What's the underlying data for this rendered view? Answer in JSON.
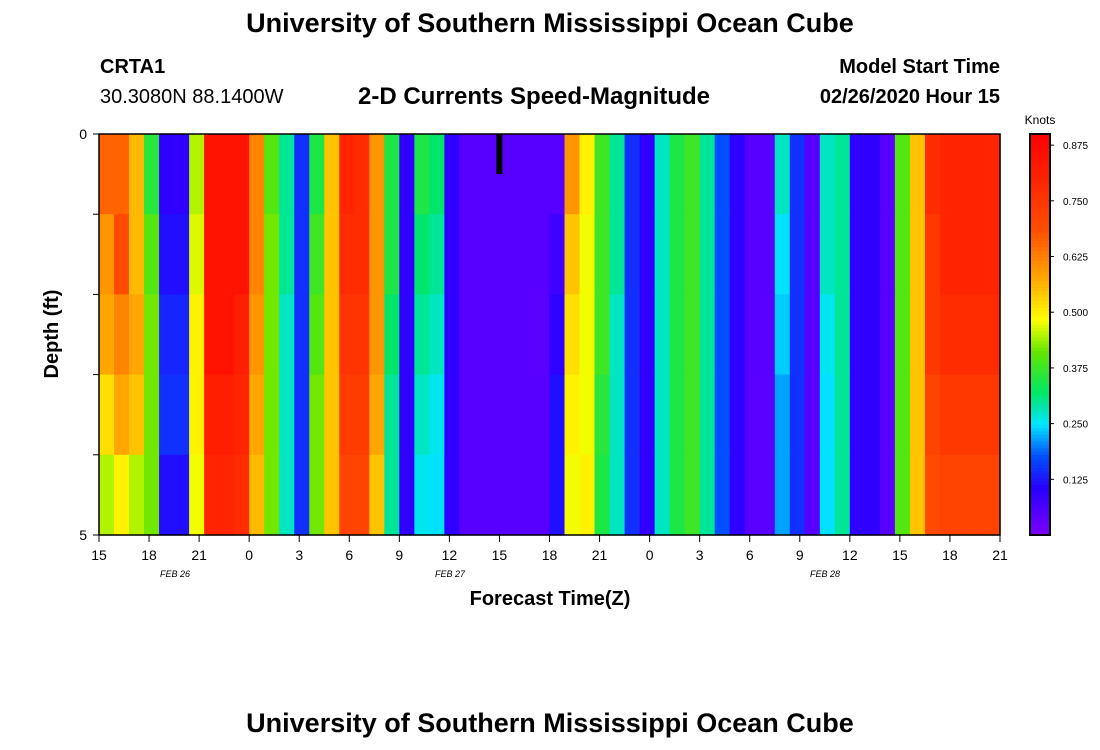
{
  "header": {
    "title": "University of Southern Mississippi Ocean Cube",
    "station_id": "CRTA1",
    "coordinates": "30.3080N 88.1400W",
    "subtitle": "2-D Currents Speed-Magnitude",
    "model_start_label": "Model Start Time",
    "model_start_value": "02/26/2020 Hour 15"
  },
  "footer": {
    "title": "University of Southern Mississippi Ocean Cube"
  },
  "chart_data": {
    "type": "heatmap",
    "xlabel": "Forecast Time(Z)",
    "ylabel": "Depth (ft)",
    "colorbar_label": "Knots",
    "x_tick_labels": [
      "15",
      "18",
      "21",
      "0",
      "3",
      "6",
      "9",
      "12",
      "15",
      "18",
      "21",
      "0",
      "3",
      "6",
      "9",
      "12",
      "15",
      "18",
      "21"
    ],
    "date_labels": [
      "FEB 26",
      "FEB 27",
      "FEB 28"
    ],
    "y_tick_labels": [
      "0",
      "5"
    ],
    "ylim": [
      0,
      5
    ],
    "colorbar_ticks": [
      "0.875",
      "0.750",
      "0.625",
      "0.500",
      "0.375",
      "0.250",
      "0.125"
    ],
    "colorbar_range": [
      0,
      0.9
    ],
    "time_hours": 54,
    "depth_levels": 5,
    "speed_knots": [
      [
        0.66,
        0.66,
        0.56,
        0.36,
        0.1,
        0.1,
        0.45,
        0.85,
        0.85,
        0.85,
        0.62,
        0.4,
        0.3,
        0.15,
        0.35,
        0.55,
        0.8,
        0.78,
        0.6,
        0.35,
        0.1,
        0.35,
        0.32,
        0.1,
        0.05,
        0.05,
        0.05,
        0.05,
        0.05,
        0.05,
        0.05,
        0.6,
        0.5,
        0.38,
        0.3,
        0.15,
        0.1,
        0.28,
        0.35,
        0.38,
        0.3,
        0.18,
        0.1,
        0.05,
        0.05,
        0.28,
        0.15,
        0.05,
        0.28,
        0.3,
        0.1,
        0.1,
        0.05,
        0.4,
        0.55,
        0.78,
        0.8,
        0.8,
        0.8,
        0.8
      ],
      [
        0.6,
        0.7,
        0.56,
        0.4,
        0.12,
        0.12,
        0.47,
        0.85,
        0.85,
        0.85,
        0.62,
        0.42,
        0.3,
        0.15,
        0.38,
        0.55,
        0.78,
        0.78,
        0.6,
        0.35,
        0.1,
        0.32,
        0.3,
        0.1,
        0.05,
        0.05,
        0.05,
        0.05,
        0.05,
        0.05,
        0.08,
        0.55,
        0.48,
        0.38,
        0.3,
        0.15,
        0.1,
        0.28,
        0.35,
        0.38,
        0.3,
        0.18,
        0.1,
        0.05,
        0.05,
        0.25,
        0.15,
        0.05,
        0.28,
        0.3,
        0.1,
        0.1,
        0.05,
        0.4,
        0.55,
        0.75,
        0.8,
        0.8,
        0.8,
        0.8
      ],
      [
        0.58,
        0.62,
        0.58,
        0.42,
        0.14,
        0.14,
        0.5,
        0.85,
        0.85,
        0.82,
        0.6,
        0.42,
        0.28,
        0.15,
        0.4,
        0.55,
        0.76,
        0.76,
        0.6,
        0.32,
        0.1,
        0.3,
        0.28,
        0.1,
        0.05,
        0.05,
        0.05,
        0.05,
        0.05,
        0.05,
        0.1,
        0.52,
        0.48,
        0.38,
        0.28,
        0.15,
        0.1,
        0.28,
        0.35,
        0.38,
        0.3,
        0.18,
        0.1,
        0.05,
        0.05,
        0.24,
        0.15,
        0.05,
        0.26,
        0.3,
        0.1,
        0.1,
        0.05,
        0.4,
        0.55,
        0.75,
        0.78,
        0.78,
        0.78,
        0.78
      ],
      [
        0.52,
        0.58,
        0.55,
        0.42,
        0.15,
        0.15,
        0.5,
        0.82,
        0.82,
        0.8,
        0.58,
        0.42,
        0.28,
        0.15,
        0.42,
        0.55,
        0.74,
        0.74,
        0.58,
        0.3,
        0.1,
        0.28,
        0.26,
        0.1,
        0.05,
        0.05,
        0.05,
        0.05,
        0.05,
        0.05,
        0.12,
        0.5,
        0.48,
        0.36,
        0.28,
        0.15,
        0.1,
        0.28,
        0.35,
        0.38,
        0.3,
        0.18,
        0.1,
        0.05,
        0.05,
        0.22,
        0.15,
        0.05,
        0.25,
        0.3,
        0.1,
        0.1,
        0.05,
        0.4,
        0.55,
        0.72,
        0.75,
        0.75,
        0.75,
        0.75
      ],
      [
        0.45,
        0.5,
        0.45,
        0.42,
        0.12,
        0.12,
        0.48,
        0.8,
        0.8,
        0.78,
        0.56,
        0.42,
        0.28,
        0.15,
        0.42,
        0.55,
        0.72,
        0.72,
        0.55,
        0.3,
        0.1,
        0.26,
        0.25,
        0.1,
        0.05,
        0.05,
        0.05,
        0.05,
        0.05,
        0.05,
        0.12,
        0.48,
        0.5,
        0.35,
        0.28,
        0.15,
        0.1,
        0.28,
        0.35,
        0.38,
        0.3,
        0.18,
        0.1,
        0.05,
        0.05,
        0.22,
        0.15,
        0.05,
        0.25,
        0.3,
        0.1,
        0.1,
        0.05,
        0.4,
        0.55,
        0.7,
        0.72,
        0.72,
        0.72,
        0.72
      ]
    ],
    "current_time_marker_hour": 24,
    "grid": false
  }
}
